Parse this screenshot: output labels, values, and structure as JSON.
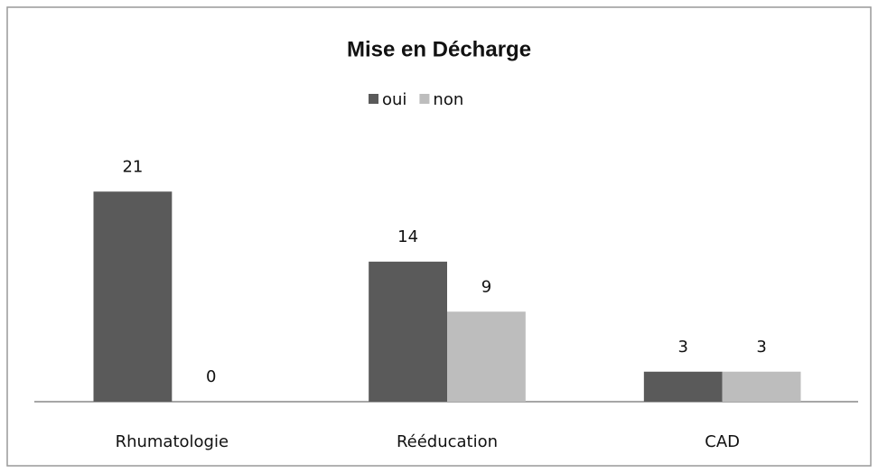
{
  "chart_data": {
    "type": "bar",
    "title": "Mise en Décharge",
    "categories": [
      "Rhumatologie",
      "Rééducation",
      "CAD"
    ],
    "series": [
      {
        "name": "oui",
        "color": "#5a5a5a",
        "values": [
          21,
          14,
          3
        ]
      },
      {
        "name": "non",
        "color": "#bdbdbd",
        "values": [
          0,
          9,
          3
        ]
      }
    ],
    "ylim": [
      0,
      24
    ],
    "legend": "top"
  }
}
